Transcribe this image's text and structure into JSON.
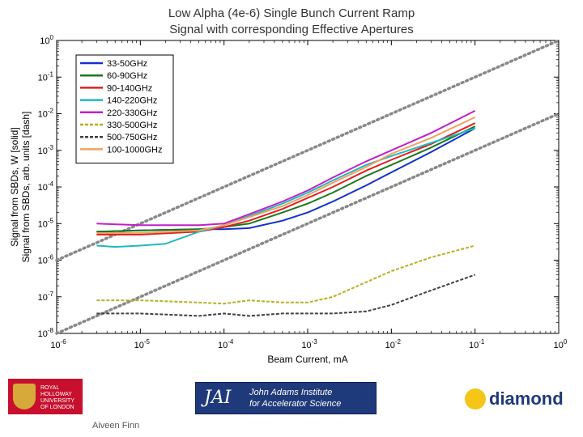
{
  "titles": {
    "line1": "Low Alpha (4e-6) Single Bunch Current Ramp",
    "line2": "Signal with corresponding Effective Apertures"
  },
  "footer": {
    "rh_line1": "ROYAL",
    "rh_line2": "HOLLOWAY",
    "rh_line3": "UNIVERSITY",
    "rh_line4": "OF LONDON",
    "jai_mark": "JAI",
    "jai_line1": "John Adams Institute",
    "jai_line2": "for Accelerator Science",
    "diamond_word": "diamond",
    "author": "Aiveen Finn"
  },
  "colors": {
    "33-50GHz": "#1530c8",
    "60-90GHz": "#1a7a1a",
    "90-140GHz": "#e02020",
    "140-220GHz": "#22b8c0",
    "220-330GHz": "#c020c8",
    "330-500GHz": "#b8b020",
    "500-750GHz": "#404040",
    "100-1000GHz": "#f0a060",
    "guide": "#888888"
  },
  "chart_data": {
    "type": "line",
    "xscale": "log",
    "yscale": "log",
    "xlabel": "Beam Current, mA",
    "ylabel_line1": "Signal from SBDs, W [solid]",
    "ylabel_line2": "Signal from SBDs, arb. units [dash]",
    "xlim": [
      1e-06,
      1
    ],
    "ylim": [
      1e-08,
      1
    ],
    "x_ticks": [
      "10^-6",
      "10^-5",
      "10^-4",
      "10^-3",
      "10^-2",
      "10^-1",
      "10^0"
    ],
    "y_ticks": [
      "10^-8",
      "10^-7",
      "10^-6",
      "10^-5",
      "10^-4",
      "10^-3",
      "10^-2",
      "10^-1",
      "10^0"
    ],
    "legend_position": "top-left",
    "series": [
      {
        "name": "33-50GHz",
        "style": "solid",
        "x": [
          3e-06,
          1e-05,
          5e-05,
          0.0001,
          0.0002,
          0.0005,
          0.001,
          0.002,
          0.005,
          0.01,
          0.03,
          0.1
        ],
        "y": [
          6e-06,
          6.5e-06,
          7e-06,
          7e-06,
          7.5e-06,
          1.2e-05,
          2e-05,
          4e-05,
          0.00011,
          0.00025,
          0.0009,
          0.004
        ]
      },
      {
        "name": "60-90GHz",
        "style": "solid",
        "x": [
          3e-06,
          1e-05,
          5e-05,
          0.0001,
          0.0002,
          0.0005,
          0.001,
          0.002,
          0.005,
          0.01,
          0.03,
          0.1
        ],
        "y": [
          6e-06,
          6.5e-06,
          7e-06,
          8e-06,
          1e-05,
          2e-05,
          3.5e-05,
          7e-05,
          0.0002,
          0.0004,
          0.0012,
          0.0045
        ]
      },
      {
        "name": "90-140GHz",
        "style": "solid",
        "x": [
          3e-06,
          1e-05,
          5e-05,
          0.0001,
          0.0002,
          0.0005,
          0.001,
          0.002,
          0.005,
          0.01,
          0.03,
          0.1
        ],
        "y": [
          5e-06,
          5e-06,
          6e-06,
          8e-06,
          1.2e-05,
          2.5e-05,
          5e-05,
          0.0001,
          0.00028,
          0.00055,
          0.0015,
          0.0055
        ]
      },
      {
        "name": "140-220GHz",
        "style": "solid",
        "x": [
          3e-06,
          5e-06,
          1e-05,
          2e-05,
          5e-05,
          0.0001,
          0.0002,
          0.0005,
          0.001,
          0.002,
          0.005,
          0.01,
          0.03,
          0.1
        ],
        "y": [
          2.5e-06,
          2.3e-06,
          2.5e-06,
          2.8e-06,
          6e-06,
          9e-06,
          1.6e-05,
          3.5e-05,
          7e-05,
          0.00015,
          0.0004,
          0.0007,
          0.0016,
          0.004
        ]
      },
      {
        "name": "220-330GHz",
        "style": "solid",
        "x": [
          3e-06,
          1e-05,
          5e-05,
          0.0001,
          0.0002,
          0.0005,
          0.001,
          0.002,
          0.005,
          0.01,
          0.03,
          0.1
        ],
        "y": [
          1e-05,
          9e-06,
          9e-06,
          1e-05,
          1.8e-05,
          4e-05,
          8e-05,
          0.00018,
          0.0005,
          0.001,
          0.003,
          0.012
        ]
      },
      {
        "name": "330-500GHz",
        "style": "dash",
        "x": [
          3e-06,
          1e-05,
          5e-05,
          0.0001,
          0.0002,
          0.0005,
          0.001,
          0.002,
          0.005,
          0.01,
          0.03,
          0.1
        ],
        "y": [
          8e-08,
          8e-08,
          7e-08,
          6.5e-08,
          8e-08,
          7e-08,
          7e-08,
          1e-07,
          2.5e-07,
          5e-07,
          1.2e-06,
          2.5e-06
        ]
      },
      {
        "name": "500-750GHz",
        "style": "dash",
        "x": [
          3e-06,
          1e-05,
          5e-05,
          0.0001,
          0.0002,
          0.0005,
          0.001,
          0.002,
          0.005,
          0.01,
          0.03,
          0.1
        ],
        "y": [
          3.5e-08,
          3.5e-08,
          3e-08,
          3.5e-08,
          3e-08,
          3.5e-08,
          3.5e-08,
          3.5e-08,
          4e-08,
          6e-08,
          1.5e-07,
          4e-07
        ]
      },
      {
        "name": "100-1000GHz",
        "style": "solid",
        "x": [
          3e-06,
          1e-05,
          5e-05,
          0.0001,
          0.0002,
          0.0005,
          0.001,
          0.002,
          0.005,
          0.01,
          0.03,
          0.1
        ],
        "y": [
          5.5e-06,
          5.5e-06,
          6.5e-06,
          9e-06,
          1.5e-05,
          3e-05,
          6e-05,
          0.00013,
          0.00035,
          0.0008,
          0.0022,
          0.008
        ]
      }
    ],
    "guides": [
      {
        "name": "aperture-upper",
        "style": "dotted",
        "x": [
          1e-06,
          1
        ],
        "y": [
          1e-06,
          1
        ]
      },
      {
        "name": "aperture-lower",
        "style": "dotted",
        "x": [
          1e-06,
          1
        ],
        "y": [
          1e-08,
          0.01
        ]
      }
    ]
  }
}
